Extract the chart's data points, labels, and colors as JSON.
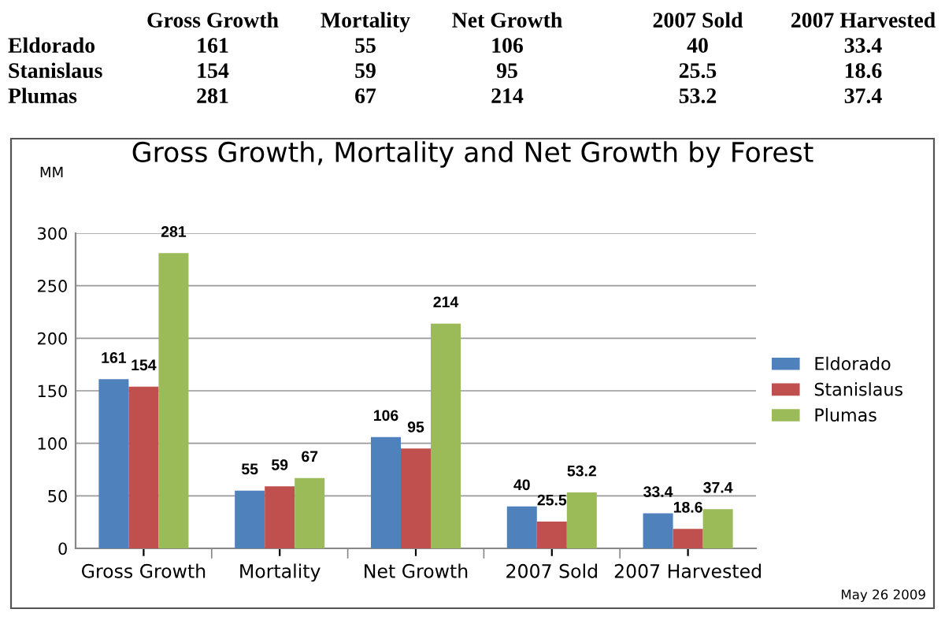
{
  "chart_data": [
    {
      "type": "other",
      "categories": [
        "Gross Growth",
        "Mortality",
        "Net Growth",
        "2007 Sold",
        "2007 Harvested"
      ],
      "y_categories": [
        "Eldorado",
        "Stanislaus",
        "Plumas"
      ],
      "cell_labels": [
        [
          "161",
          "55",
          "106",
          "40",
          "33.4"
        ],
        [
          "154",
          "59",
          "95",
          "25.5",
          "18.6"
        ],
        [
          "281",
          "67",
          "214",
          "53.2",
          "37.4"
        ]
      ]
    },
    {
      "type": "bar",
      "title": "Gross Growth, Mortality and Net Growth by Forest",
      "ylabel": "MM",
      "categories": [
        "Gross Growth",
        "Mortality",
        "Net Growth",
        "2007 Sold",
        "2007 Harvested"
      ],
      "series": [
        {
          "name": "Eldorado",
          "color": "#4f81bd",
          "values": [
            161,
            55,
            106,
            40,
            33.4
          ]
        },
        {
          "name": "Stanislaus",
          "color": "#c0504d",
          "values": [
            154,
            59,
            95,
            25.5,
            18.6
          ]
        },
        {
          "name": "Plumas",
          "color": "#9bbb59",
          "values": [
            281,
            67,
            214,
            53.2,
            37.4
          ]
        }
      ],
      "ylim": [
        0,
        300
      ],
      "yticks": [
        0,
        50,
        100,
        150,
        200,
        250,
        300
      ],
      "grid": "y",
      "legend": "right",
      "data_labels": true,
      "annotations": [
        "May 26 2009"
      ]
    }
  ]
}
